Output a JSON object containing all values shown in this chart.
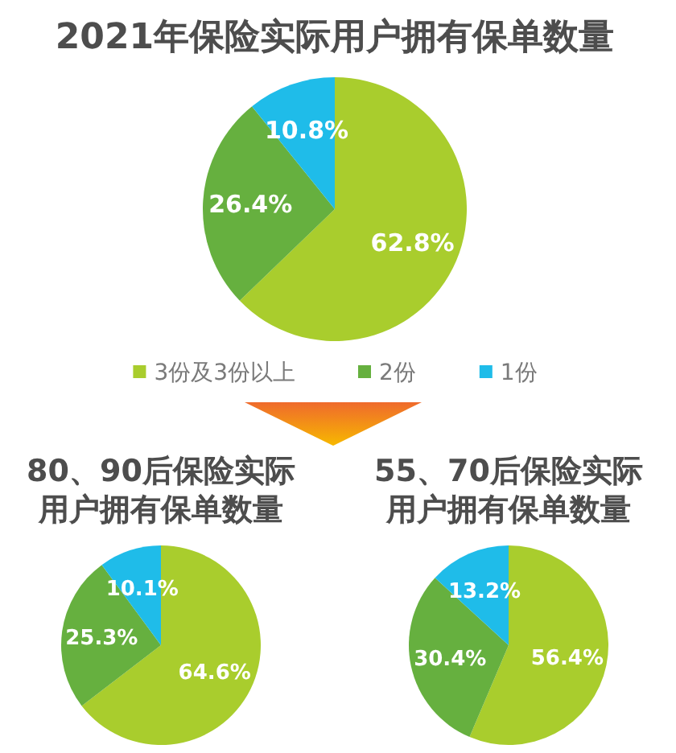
{
  "chart_data": [
    {
      "type": "pie",
      "title": "2021年保险实际用户拥有保单数量",
      "categories": [
        "3份及3份以上",
        "2份",
        "1份"
      ],
      "values": [
        62.8,
        26.4,
        10.8
      ],
      "value_labels": [
        "62.8%",
        "26.4%",
        "10.8%"
      ],
      "colors": [
        "#a9cd2d",
        "#66b03f",
        "#1fbce9"
      ],
      "legend": "bottom"
    },
    {
      "type": "pie",
      "title": "80、90后保险实际用户拥有保单数量",
      "categories": [
        null,
        null,
        null
      ],
      "values": [
        64.6,
        25.3,
        10.1
      ],
      "value_labels": [
        "64.6%",
        "25.3%",
        "10.1%"
      ],
      "colors": [
        "#a9cd2d",
        "#66b03f",
        "#1fbce9"
      ]
    },
    {
      "type": "pie",
      "title": "55、70后保险实际用户拥有保单数量",
      "categories": [
        null,
        null,
        null
      ],
      "values": [
        56.4,
        30.4,
        13.2
      ],
      "value_labels": [
        "56.4%",
        "30.4%",
        "13.2%"
      ],
      "colors": [
        "#a9cd2d",
        "#66b03f",
        "#1fbce9"
      ]
    }
  ]
}
